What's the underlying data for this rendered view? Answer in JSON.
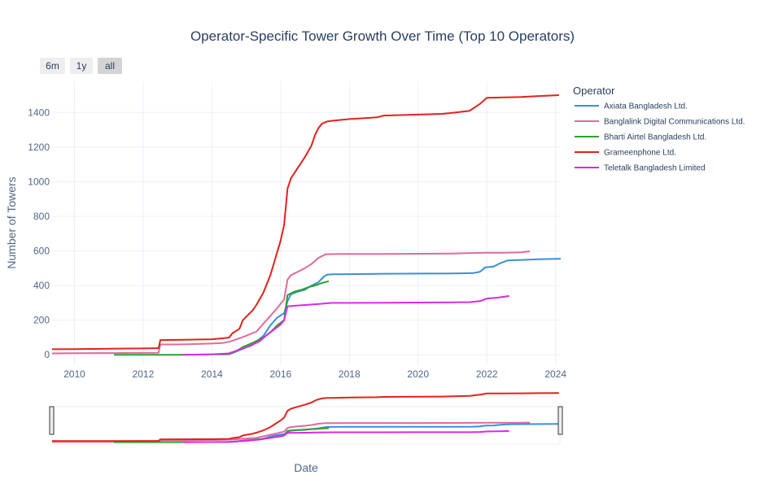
{
  "title": "Operator-Specific Tower Growth Over Time (Top 10 Operators)",
  "range_buttons": [
    {
      "label": "6m",
      "active": false
    },
    {
      "label": "1y",
      "active": false
    },
    {
      "label": "all",
      "active": true
    }
  ],
  "legend": {
    "title": "Operator"
  },
  "chart_data": {
    "type": "line",
    "title": "Operator-Specific Tower Growth Over Time (Top 10 Operators)",
    "xlabel": "Date",
    "ylabel": "Number of Towers",
    "xlim": [
      2009.35,
      2024.15
    ],
    "ylim": [
      -60,
      1580
    ],
    "x_ticks": [
      2010,
      2012,
      2014,
      2016,
      2018,
      2020,
      2022,
      2024
    ],
    "y_ticks": [
      0,
      200,
      400,
      600,
      800,
      1000,
      1200,
      1400
    ],
    "grid": true,
    "legend_position": "right",
    "rangeslider": true,
    "series": [
      {
        "name": "Axiata Bangladesh Ltd.",
        "color": "#3a8fd9",
        "x": [
          2014.6,
          2014.9,
          2015.2,
          2015.5,
          2015.7,
          2015.9,
          2016.1,
          2016.2,
          2016.3,
          2016.5,
          2016.7,
          2016.9,
          2017.1,
          2017.25,
          2017.35,
          2017.5,
          2018,
          2019,
          2020,
          2021,
          2021.6,
          2021.8,
          2021.95,
          2022.2,
          2022.4,
          2022.6,
          2023,
          2023.5,
          2024.15
        ],
        "y": [
          10,
          35,
          60,
          110,
          170,
          215,
          240,
          310,
          350,
          365,
          375,
          400,
          420,
          450,
          463,
          465,
          466,
          468,
          469,
          470,
          472,
          480,
          505,
          510,
          530,
          545,
          548,
          552,
          555
        ]
      },
      {
        "name": "Banglalink Digital Communications Ltd.",
        "color": "#e06a9a",
        "x": [
          2009.35,
          2010,
          2011,
          2012,
          2012.45,
          2012.5,
          2013,
          2013.5,
          2014,
          2014.3,
          2014.5,
          2014.8,
          2015,
          2015.3,
          2015.5,
          2015.7,
          2015.9,
          2016.1,
          2016.2,
          2016.3,
          2016.5,
          2016.7,
          2016.9,
          2017.1,
          2017.3,
          2017.5,
          2018,
          2019,
          2020,
          2021,
          2021.5,
          2022,
          2022.5,
          2023,
          2023.25
        ],
        "y": [
          8,
          9,
          10,
          11,
          12,
          60,
          60,
          62,
          65,
          68,
          75,
          95,
          110,
          135,
          180,
          225,
          270,
          320,
          435,
          460,
          480,
          500,
          525,
          560,
          580,
          582,
          583,
          583,
          584,
          585,
          588,
          590,
          590,
          592,
          598
        ]
      },
      {
        "name": "Bharti Airtel Bangladesh Ltd.",
        "color": "#2ca02c",
        "x": [
          2011.15,
          2012,
          2013,
          2013.5,
          2014,
          2014.5,
          2014.7,
          2014.9,
          2015.2,
          2015.5,
          2015.7,
          2015.9,
          2016.1,
          2016.2,
          2016.4,
          2016.6,
          2016.8,
          2017,
          2017.2,
          2017.4
        ],
        "y": [
          0,
          0,
          0,
          1,
          2,
          3,
          20,
          45,
          70,
          100,
          130,
          170,
          200,
          345,
          365,
          375,
          390,
          400,
          415,
          425
        ]
      },
      {
        "name": "Grameenphone Ltd.",
        "color": "#e3211c",
        "x": [
          2009.35,
          2010,
          2011,
          2012,
          2012.4,
          2012.45,
          2012.5,
          2013,
          2013.5,
          2014,
          2014.3,
          2014.5,
          2014.6,
          2014.8,
          2014.9,
          2015,
          2015.2,
          2015.3,
          2015.5,
          2015.7,
          2015.85,
          2016,
          2016.1,
          2016.2,
          2016.3,
          2016.5,
          2016.7,
          2016.9,
          2017,
          2017.1,
          2017.2,
          2017.35,
          2017.5,
          2018,
          2018.5,
          2018.8,
          2019,
          2020,
          2020.7,
          2021,
          2021.5,
          2021.8,
          2022,
          2022.5,
          2023,
          2023.5,
          2024.1
        ],
        "y": [
          32,
          33,
          35,
          37,
          38,
          38,
          85,
          86,
          88,
          90,
          95,
          100,
          125,
          150,
          200,
          220,
          260,
          290,
          360,
          460,
          560,
          660,
          750,
          960,
          1020,
          1080,
          1140,
          1210,
          1270,
          1310,
          1335,
          1348,
          1352,
          1362,
          1368,
          1372,
          1382,
          1388,
          1392,
          1398,
          1410,
          1450,
          1485,
          1487,
          1490,
          1495,
          1500
        ]
      },
      {
        "name": "Teletalk Bangladesh Limited",
        "color": "#d829e8",
        "x": [
          2013.15,
          2014,
          2014.5,
          2014.8,
          2015.1,
          2015.4,
          2015.6,
          2015.8,
          2016,
          2016.1,
          2016.2,
          2016.5,
          2017,
          2017.5,
          2018,
          2019,
          2020,
          2021,
          2021.5,
          2021.8,
          2022,
          2022.3,
          2022.5,
          2022.65
        ],
        "y": [
          0,
          3,
          8,
          30,
          50,
          80,
          115,
          145,
          175,
          200,
          280,
          285,
          292,
          300,
          300,
          301,
          302,
          303,
          304,
          310,
          325,
          330,
          335,
          340
        ]
      }
    ]
  }
}
